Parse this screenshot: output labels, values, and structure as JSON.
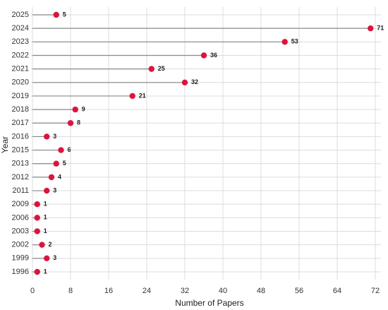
{
  "chart_data": {
    "type": "lollipop",
    "x_label": "Number of Papers",
    "y_label": "Year",
    "categories": [
      "2025",
      "2024",
      "2023",
      "2022",
      "2021",
      "2020",
      "2019",
      "2018",
      "2017",
      "2016",
      "2015",
      "2013",
      "2012",
      "2011",
      "2009",
      "2006",
      "2003",
      "2002",
      "1999",
      "1996"
    ],
    "values": [
      5,
      71,
      53,
      36,
      25,
      32,
      21,
      9,
      8,
      3,
      6,
      5,
      4,
      3,
      1,
      1,
      1,
      2,
      3,
      1
    ],
    "color": "#dc143c",
    "stem_color": "#888888",
    "xlim": [
      0,
      72
    ],
    "xticks": [
      0,
      8,
      16,
      24,
      32,
      40,
      48,
      56,
      64,
      72
    ],
    "grid": true
  }
}
